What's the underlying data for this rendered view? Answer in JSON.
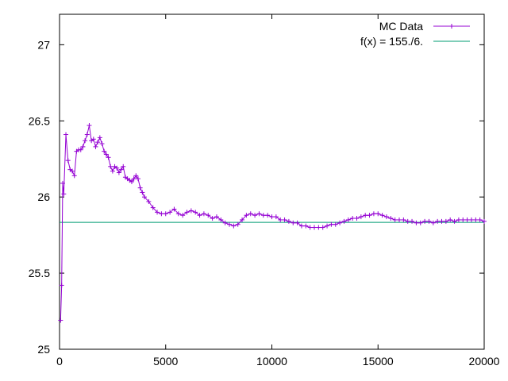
{
  "chart_data": {
    "type": "line",
    "title": "",
    "xlabel": "",
    "ylabel": "",
    "xlim": [
      0,
      20000
    ],
    "ylim": [
      25,
      27.2
    ],
    "xticks": [
      0,
      5000,
      10000,
      15000,
      20000
    ],
    "yticks": [
      25,
      25.5,
      26,
      26.5,
      27
    ],
    "grid": false,
    "legend_position": "top-right",
    "series": [
      {
        "name": "MC Data",
        "color": "#9400d3",
        "marker": "plus",
        "x": [
          50,
          100,
          150,
          200,
          300,
          400,
          500,
          600,
          700,
          800,
          900,
          1000,
          1100,
          1200,
          1300,
          1400,
          1500,
          1600,
          1700,
          1800,
          1900,
          2000,
          2100,
          2200,
          2300,
          2400,
          2500,
          2600,
          2700,
          2800,
          2900,
          3000,
          3100,
          3200,
          3300,
          3400,
          3500,
          3600,
          3700,
          3800,
          3900,
          4000,
          4200,
          4400,
          4600,
          4800,
          5000,
          5200,
          5400,
          5600,
          5800,
          6000,
          6200,
          6400,
          6600,
          6800,
          7000,
          7200,
          7400,
          7600,
          7800,
          8000,
          8200,
          8400,
          8600,
          8800,
          9000,
          9200,
          9400,
          9600,
          9800,
          10000,
          10200,
          10400,
          10600,
          10800,
          11000,
          11200,
          11400,
          11600,
          11800,
          12000,
          12200,
          12400,
          12600,
          12800,
          13000,
          13200,
          13400,
          13600,
          13800,
          14000,
          14200,
          14400,
          14600,
          14800,
          15000,
          15200,
          15400,
          15600,
          15800,
          16000,
          16200,
          16400,
          16600,
          16800,
          17000,
          17200,
          17400,
          17600,
          17800,
          18000,
          18200,
          18400,
          18600,
          18800,
          19000,
          19200,
          19400,
          19600,
          19800,
          20000
        ],
        "values": [
          25.19,
          25.42,
          26.09,
          26.02,
          26.41,
          26.24,
          26.18,
          26.17,
          26.14,
          26.3,
          26.31,
          26.31,
          26.33,
          26.37,
          26.41,
          26.47,
          26.37,
          26.38,
          26.33,
          26.36,
          26.39,
          26.35,
          26.3,
          26.28,
          26.26,
          26.2,
          26.17,
          26.2,
          26.19,
          26.16,
          26.18,
          26.2,
          26.13,
          26.12,
          26.11,
          26.1,
          26.12,
          26.14,
          26.12,
          26.06,
          26.03,
          26.0,
          25.97,
          25.93,
          25.9,
          25.89,
          25.89,
          25.9,
          25.92,
          25.89,
          25.88,
          25.9,
          25.91,
          25.9,
          25.88,
          25.89,
          25.88,
          25.86,
          25.87,
          25.85,
          25.83,
          25.82,
          25.81,
          25.82,
          25.85,
          25.88,
          25.89,
          25.88,
          25.89,
          25.88,
          25.88,
          25.87,
          25.87,
          25.85,
          25.85,
          25.84,
          25.83,
          25.83,
          25.81,
          25.81,
          25.8,
          25.8,
          25.8,
          25.8,
          25.81,
          25.82,
          25.82,
          25.83,
          25.84,
          25.85,
          25.86,
          25.86,
          25.87,
          25.88,
          25.88,
          25.89,
          25.89,
          25.88,
          25.87,
          25.86,
          25.85,
          25.85,
          25.85,
          25.84,
          25.84,
          25.83,
          25.83,
          25.84,
          25.84,
          25.83,
          25.84,
          25.84,
          25.84,
          25.85,
          25.84,
          25.85,
          25.85,
          25.85,
          25.85,
          25.85,
          25.85,
          25.84
        ]
      },
      {
        "name": "f(x) = 155./6.",
        "color": "#009e73",
        "marker": "none",
        "constant": 25.8333
      }
    ]
  }
}
